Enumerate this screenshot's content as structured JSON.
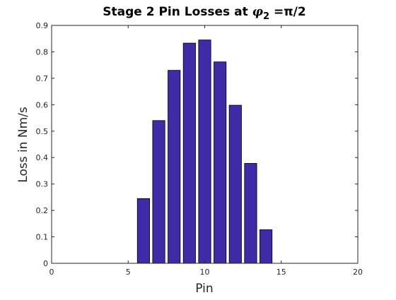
{
  "chart_data": {
    "type": "bar",
    "title_prefix": "Stage 2 Pin Losses at ",
    "title_symbol": "φ",
    "title_subscript": "2",
    "title_suffix": " =π/2",
    "xlabel": "Pin",
    "ylabel": "Loss in Nm/s",
    "x": [
      6,
      7,
      8,
      9,
      10,
      11,
      12,
      13,
      14
    ],
    "values": [
      0.245,
      0.54,
      0.73,
      0.833,
      0.845,
      0.762,
      0.598,
      0.378,
      0.127
    ],
    "xlim": [
      0,
      20
    ],
    "ylim": [
      0,
      0.9
    ],
    "xticks": [
      0,
      5,
      10,
      15,
      20
    ],
    "xtick_labels": [
      "0",
      "5",
      "10",
      "15",
      "20"
    ],
    "yticks": [
      0,
      0.1,
      0.2,
      0.3,
      0.4,
      0.5,
      0.6,
      0.7,
      0.8,
      0.9
    ],
    "ytick_labels": [
      "0",
      "0.1",
      "0.2",
      "0.3",
      "0.4",
      "0.5",
      "0.6",
      "0.7",
      "0.8",
      "0.9"
    ],
    "bar_width": 0.8,
    "grid": false,
    "bar_color": "#3f2aa8",
    "edge_color": "#000000"
  }
}
